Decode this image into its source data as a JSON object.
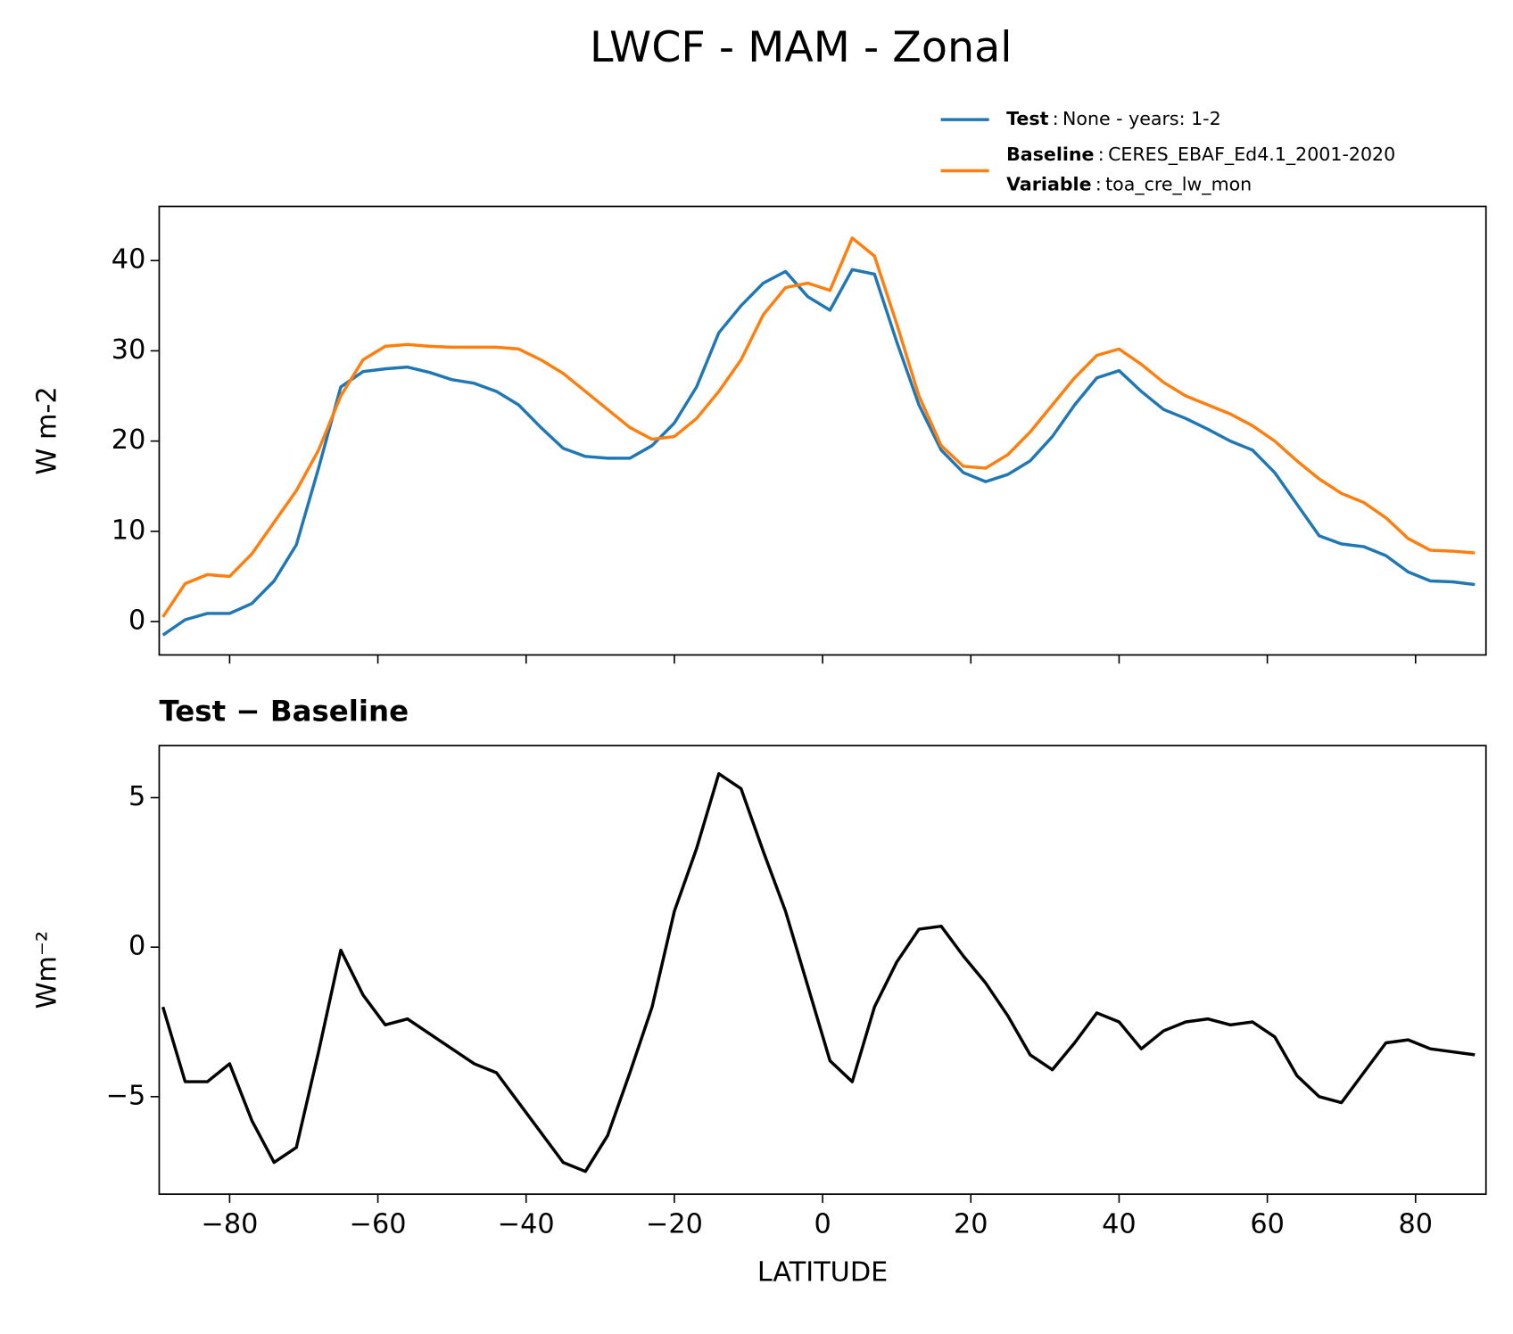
{
  "chart_data": [
    {
      "type": "line",
      "title": "LWCF - MAM - Zonal",
      "ylabel": "W m-2",
      "x": [
        -89,
        -86,
        -83,
        -80,
        -77,
        -74,
        -71,
        -68,
        -65,
        -62,
        -59,
        -56,
        -53,
        -50,
        -47,
        -44,
        -41,
        -38,
        -35,
        -32,
        -29,
        -26,
        -23,
        -20,
        -17,
        -14,
        -11,
        -8,
        -5,
        -2,
        1,
        4,
        7,
        10,
        13,
        16,
        19,
        22,
        25,
        28,
        31,
        34,
        37,
        40,
        43,
        46,
        49,
        52,
        55,
        58,
        61,
        64,
        67,
        70,
        73,
        76,
        79,
        82,
        85,
        88
      ],
      "legend_separator": ":",
      "series": [
        {
          "name": "Test",
          "description": "None - years: 1-2",
          "color": "#1f77b4",
          "values": [
            -1.5,
            0.2,
            0.9,
            0.9,
            2.0,
            4.5,
            8.5,
            17,
            26,
            27.7,
            28,
            28.2,
            27.6,
            26.8,
            26.4,
            25.5,
            24,
            21.5,
            19.2,
            18.3,
            18.1,
            18.1,
            19.5,
            22,
            26,
            32,
            35,
            37.5,
            38.8,
            36,
            34.5,
            39,
            38.5,
            31,
            24,
            19,
            16.5,
            15.5,
            16.3,
            17.8,
            20.5,
            24,
            27,
            27.8,
            25.5,
            23.5,
            22.5,
            21.3,
            20,
            19,
            16.5,
            13,
            9.5,
            8.6,
            8.3,
            7.3,
            5.5,
            4.5,
            4.4,
            4.1
          ]
        },
        {
          "name": "Baseline",
          "description": "CERES_EBAF_Ed4.1_2001-2020",
          "variable_label": "Variable",
          "variable": "toa_cre_lw_mon",
          "color": "#ff7f0e",
          "values": [
            0.5,
            4.2,
            5.2,
            5.0,
            7.5,
            11,
            14.5,
            19,
            25,
            29,
            30.5,
            30.7,
            30.5,
            30.4,
            30.4,
            30.4,
            30.2,
            29,
            27.5,
            25.5,
            23.5,
            21.5,
            20.2,
            20.5,
            22.5,
            25.5,
            29,
            34,
            37,
            37.5,
            36.7,
            42.5,
            40.5,
            33,
            25,
            19.5,
            17.2,
            17,
            18.5,
            21,
            24,
            27,
            29.5,
            30.2,
            28.5,
            26.5,
            25,
            24,
            23,
            21.7,
            20,
            17.8,
            15.8,
            14.2,
            13.2,
            11.5,
            9.2,
            7.9,
            7.8,
            7.6
          ]
        }
      ],
      "xlim": [
        -89.5,
        89.5
      ],
      "ylim": [
        -3.7,
        46
      ],
      "xticks": [
        -80,
        -60,
        -40,
        -20,
        0,
        20,
        40,
        60,
        80
      ],
      "xticklabels": false,
      "yticks": [
        0,
        10,
        20,
        30,
        40
      ]
    },
    {
      "type": "line",
      "title": "Test − Baseline",
      "xlabel": "LATITUDE",
      "ylabel": "Wm⁻²",
      "x": [
        -89,
        -86,
        -83,
        -80,
        -77,
        -74,
        -71,
        -68,
        -65,
        -62,
        -59,
        -56,
        -53,
        -50,
        -47,
        -44,
        -41,
        -38,
        -35,
        -32,
        -29,
        -26,
        -23,
        -20,
        -17,
        -14,
        -11,
        -8,
        -5,
        -2,
        1,
        4,
        7,
        10,
        13,
        16,
        19,
        22,
        25,
        28,
        31,
        34,
        37,
        40,
        43,
        46,
        49,
        52,
        55,
        58,
        61,
        64,
        67,
        70,
        73,
        76,
        79,
        82,
        85,
        88
      ],
      "series": [
        {
          "color": "#000000",
          "values": [
            -2,
            -4.5,
            -4.5,
            -3.9,
            -5.8,
            -7.2,
            -6.7,
            -3.5,
            -0.1,
            -1.6,
            -2.6,
            -2.4,
            -2.9,
            -3.4,
            -3.9,
            -4.2,
            -5.2,
            -6.2,
            -7.2,
            -7.5,
            -6.3,
            -4.2,
            -2.0,
            1.2,
            3.3,
            5.8,
            5.3,
            3.2,
            1.2,
            -1.3,
            -3.8,
            -4.5,
            -2.0,
            -0.5,
            0.6,
            0.7,
            -0.3,
            -1.2,
            -2.3,
            -3.6,
            -4.1,
            -3.2,
            -2.2,
            -2.5,
            -3.4,
            -2.8,
            -2.5,
            -2.4,
            -2.6,
            -2.5,
            -3.0,
            -4.3,
            -5.0,
            -5.2,
            -4.2,
            -3.2,
            -3.1,
            -3.4,
            -3.5,
            -3.6
          ]
        }
      ],
      "xlim": [
        -89.5,
        89.5
      ],
      "ylim": [
        -8.26,
        6.74
      ],
      "xticks": [
        {
          "value": -80,
          "label": "−80"
        },
        {
          "value": -60,
          "label": "−60"
        },
        {
          "value": -40,
          "label": "−40"
        },
        {
          "value": -20,
          "label": "−20"
        },
        0,
        20,
        40,
        60,
        80
      ],
      "xticklabels": true,
      "yticks": [
        {
          "value": -5,
          "label": "−5"
        },
        0,
        5
      ]
    }
  ]
}
